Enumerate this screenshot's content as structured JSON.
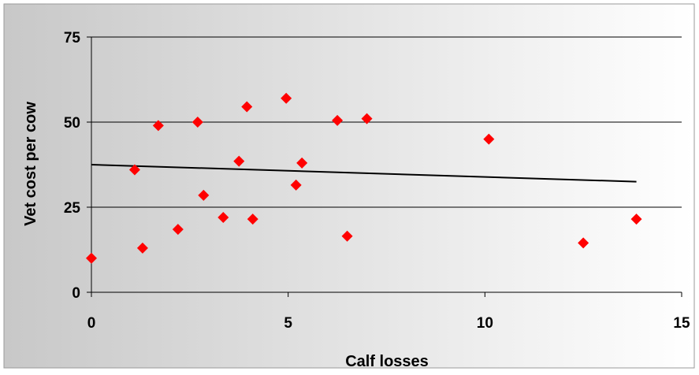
{
  "chart_data": {
    "type": "scatter",
    "title": "",
    "xlabel": "Calf losses",
    "ylabel": "Vet cost per cow",
    "xlim": [
      0,
      15
    ],
    "ylim": [
      0,
      75
    ],
    "xticks": [
      0,
      5,
      10,
      15
    ],
    "yticks": [
      0,
      25,
      50,
      75
    ],
    "grid": {
      "horizontal": true,
      "vertical": false
    },
    "legend": null,
    "series": [
      {
        "points": [
          [
            0,
            10
          ],
          [
            1.1,
            36
          ],
          [
            1.3,
            13
          ],
          [
            1.7,
            49
          ],
          [
            2.2,
            18.5
          ],
          [
            2.7,
            50
          ],
          [
            2.85,
            28.5
          ],
          [
            3.35,
            22
          ],
          [
            3.75,
            38.5
          ],
          [
            3.95,
            54.5
          ],
          [
            4.1,
            21.5
          ],
          [
            4.95,
            57
          ],
          [
            5.2,
            31.5
          ],
          [
            5.35,
            38
          ],
          [
            6.25,
            50.5
          ],
          [
            6.5,
            16.5
          ],
          [
            7.0,
            51
          ],
          [
            10.1,
            45
          ],
          [
            12.5,
            14.5
          ],
          [
            13.85,
            21.5
          ]
        ]
      }
    ],
    "trendline": {
      "type": "linear",
      "x": [
        0,
        13.85
      ],
      "y": [
        37.5,
        32.5
      ]
    },
    "colors": {
      "marker": "#ff0000",
      "trendline": "#000000",
      "gridline": "#000000",
      "background_left": "#c8c8c8",
      "background_right": "#ffffff"
    }
  }
}
